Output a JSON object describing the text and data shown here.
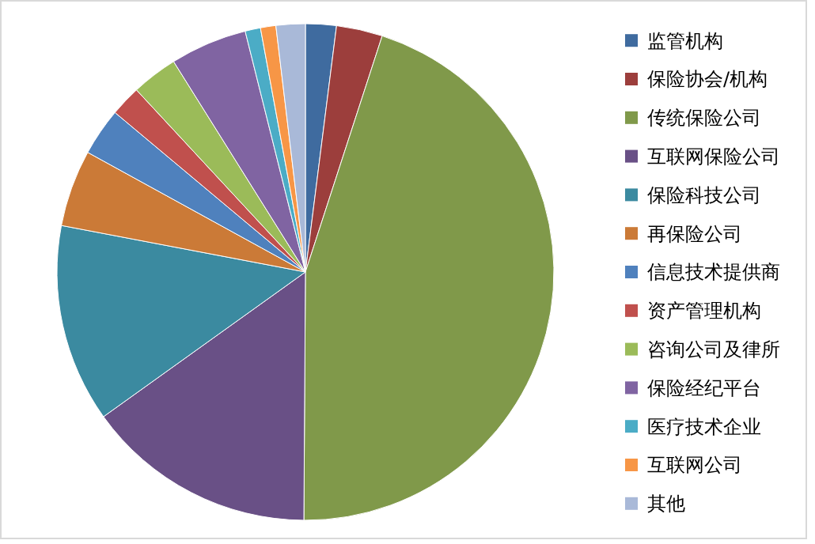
{
  "chart_data": {
    "type": "pie",
    "categories": [
      "监管机构",
      "保险协会/机构",
      "传统保险公司",
      "互联网保险公司",
      "保险科技公司",
      "再保险公司",
      "信息技术提供商",
      "资产管理机构",
      "咨询公司及律所",
      "保险经纪平台",
      "医疗技术企业",
      "互联网公司",
      "其他"
    ],
    "values": [
      2,
      3,
      45.1,
      15,
      12.9,
      5,
      3.1,
      2,
      3,
      5,
      1,
      1,
      1.9
    ],
    "colors": [
      "#3f6b9f",
      "#9c3e3c",
      "#80994a",
      "#695086",
      "#3b8aa0",
      "#cb7a37",
      "#4f81bd",
      "#c0504d",
      "#9bbb59",
      "#8064a2",
      "#4bacc6",
      "#f79646",
      "#a9b9d8"
    ],
    "legend": "right"
  }
}
